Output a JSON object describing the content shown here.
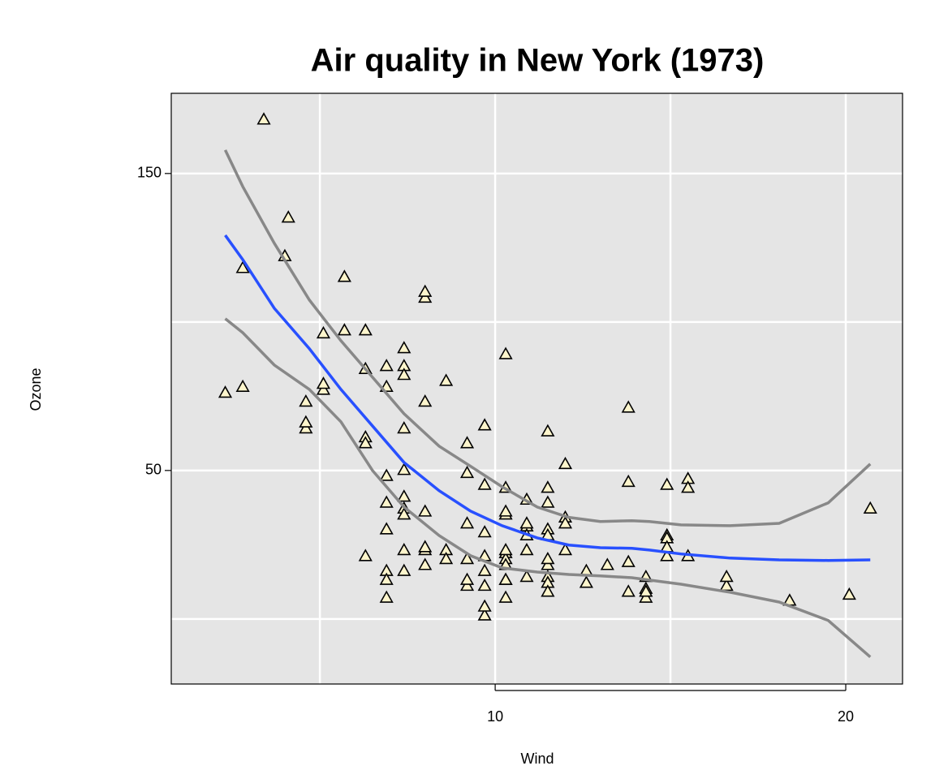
{
  "chart_data": {
    "type": "scatter",
    "title": "Air quality in New York (1973)",
    "x_label": "Wind",
    "y_label": "Ozone",
    "xlim": [
      0.76,
      21.62
    ],
    "ylim": [
      -21.9,
      177
    ],
    "xticks": [
      10,
      20
    ],
    "yticks": [
      50,
      150
    ],
    "xgrid": [
      5,
      10,
      15,
      20
    ],
    "ygrid": [
      0,
      50,
      100,
      150
    ],
    "grid": true,
    "background": "#e5e5e5",
    "series": [
      {
        "type": "scatter",
        "marker": "triangle",
        "color": "#fdf5cc",
        "x": [
          7.4,
          8.0,
          12.6,
          11.5,
          14.9,
          8.6,
          13.8,
          20.1,
          6.9,
          9.7,
          9.2,
          10.9,
          13.2,
          11.5,
          12.0,
          18.4,
          11.5,
          9.7,
          9.7,
          16.6,
          9.7,
          12.0,
          12.0,
          14.9,
          5.7,
          7.4,
          9.7,
          13.8,
          11.5,
          8.0,
          14.9,
          20.7,
          9.2,
          11.5,
          10.3,
          4.1,
          9.2,
          9.2,
          4.6,
          10.9,
          5.1,
          6.3,
          5.7,
          7.4,
          14.3,
          14.9,
          14.3,
          6.9,
          10.3,
          6.3,
          5.1,
          11.5,
          6.9,
          8.6,
          8.0,
          8.6,
          12.0,
          7.4,
          7.4,
          7.4,
          9.2,
          6.9,
          13.8,
          7.4,
          6.9,
          7.4,
          4.6,
          4.0,
          10.3,
          8.0,
          11.5,
          11.5,
          9.7,
          10.3,
          6.3,
          7.4,
          10.9,
          10.3,
          15.5,
          14.3,
          9.7,
          3.4,
          8.0,
          2.3,
          2.8,
          6.3,
          6.9,
          5.1,
          2.8,
          4.6,
          7.4,
          15.5,
          10.9,
          10.3,
          10.9,
          9.7,
          14.9,
          15.5,
          6.3,
          10.9,
          11.5,
          6.9,
          13.8,
          10.3,
          10.3,
          8.0,
          12.6,
          9.2,
          10.3,
          10.3,
          10.3,
          16.6,
          6.9,
          14.3,
          8.0,
          11.5
        ],
        "values": [
          41,
          36,
          12,
          18,
          28,
          23,
          19,
          8,
          7,
          16,
          11,
          14,
          18,
          14,
          34,
          6,
          30,
          11,
          1,
          11,
          4,
          32,
          23,
          45,
          115,
          37,
          29,
          71,
          39,
          23,
          21,
          37,
          20,
          12,
          13,
          135,
          49,
          32,
          64,
          40,
          77,
          97,
          97,
          85,
          10,
          27,
          7,
          48,
          35,
          61,
          79,
          63,
          16,
          80,
          108,
          20,
          52,
          82,
          50,
          64,
          59,
          39,
          9,
          16,
          78,
          35,
          66,
          122,
          89,
          110,
          44,
          28,
          65,
          22,
          59,
          23,
          31,
          44,
          21,
          9,
          45,
          168,
          73,
          76,
          118,
          84,
          85,
          96,
          78,
          73,
          91,
          47,
          32,
          20,
          23,
          21,
          24,
          44,
          21,
          28,
          9,
          13,
          46,
          18,
          13,
          24,
          16,
          13,
          23,
          36,
          7,
          14,
          30,
          14,
          18,
          20
        ]
      },
      {
        "type": "line",
        "color": "#2850ff",
        "x": [
          2.3,
          2.8,
          3.7,
          4.7,
          5.6,
          6.5,
          7.4,
          8.4,
          9.3,
          10.2,
          11.2,
          12.1,
          13.0,
          13.9,
          14.4,
          15.3,
          16.7,
          18.1,
          19.5,
          20.7
        ],
        "values": [
          129.2,
          121.0,
          104.6,
          91.0,
          77.3,
          65.0,
          52.7,
          43.2,
          36.3,
          31.4,
          27.3,
          24.9,
          24.0,
          23.8,
          23.2,
          21.9,
          20.5,
          19.9,
          19.7,
          19.9
        ]
      },
      {
        "type": "line",
        "color": "#888888",
        "x": [
          2.3,
          2.8,
          3.7,
          4.7,
          5.6,
          6.5,
          7.4,
          8.4,
          9.3,
          10.2,
          11.2,
          12.1,
          13.0,
          13.9,
          14.4,
          15.3,
          16.7,
          18.1,
          19.5,
          20.7
        ],
        "values": [
          157.9,
          145.6,
          126.5,
          107.4,
          93.7,
          81.4,
          69.1,
          58.2,
          51.4,
          44.5,
          37.7,
          34.2,
          32.8,
          33.1,
          32.8,
          31.7,
          31.4,
          32.2,
          39.1,
          52.2
        ]
      },
      {
        "type": "line",
        "color": "#888888",
        "x": [
          2.3,
          2.8,
          3.7,
          4.7,
          5.6,
          6.5,
          7.4,
          8.4,
          9.3,
          10.2,
          11.2,
          12.1,
          13.0,
          13.9,
          14.4,
          15.3,
          16.7,
          18.1,
          19.5,
          20.7
        ],
        "values": [
          101.1,
          96.4,
          85.5,
          77.3,
          66.4,
          50.0,
          37.7,
          28.1,
          21.3,
          17.2,
          15.8,
          15.0,
          14.5,
          13.9,
          13.1,
          11.7,
          9.0,
          5.7,
          -0.5,
          -12.8
        ]
      }
    ]
  }
}
